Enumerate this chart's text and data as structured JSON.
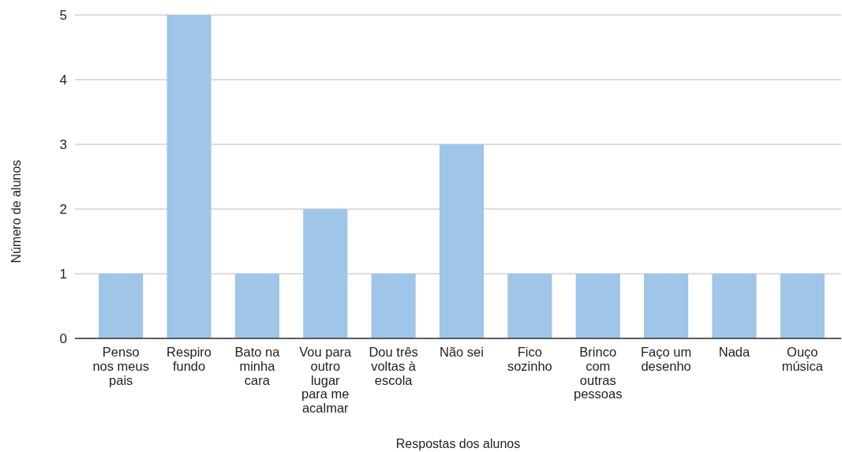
{
  "chart_data": {
    "type": "bar",
    "xlabel": "Respostas dos alunos",
    "ylabel": "Número de alunos",
    "categories": [
      "Penso nos meus pais",
      "Respiro fundo",
      "Bato na minha cara",
      "Vou para outro lugar para me acalmar",
      "Dou três voltas à escola",
      "Não sei",
      "Fico sozinho",
      "Brinco com outras pessoas",
      "Faço um desenho",
      "Nada",
      "Ouço música"
    ],
    "values": [
      1,
      5,
      1,
      2,
      1,
      3,
      1,
      1,
      1,
      1,
      1
    ],
    "color": "#9fc5e8",
    "ylim": [
      0,
      5
    ],
    "yticks": [
      0,
      1,
      2,
      3,
      4,
      5
    ],
    "grid": "y"
  }
}
